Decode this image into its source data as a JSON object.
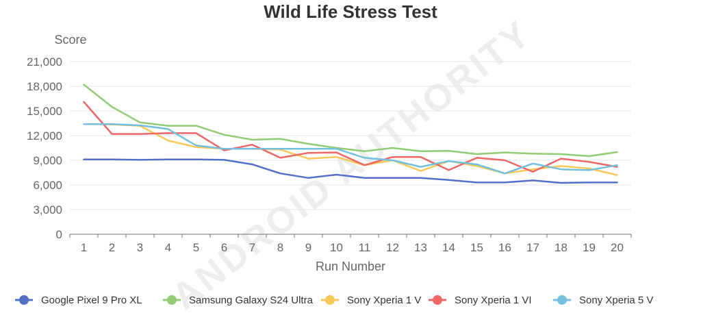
{
  "chart_data": {
    "type": "line",
    "title": "Wild Life Stress Test",
    "xlabel": "Run Number",
    "ylabel": "Score",
    "categories": [
      "1",
      "2",
      "3",
      "4",
      "5",
      "6",
      "7",
      "8",
      "9",
      "10",
      "11",
      "12",
      "13",
      "14",
      "15",
      "16",
      "17",
      "18",
      "19",
      "20"
    ],
    "ylim": [
      0,
      21000
    ],
    "yticks": [
      "0",
      "3,000",
      "6,000",
      "9,000",
      "12,000",
      "15,000",
      "18,000",
      "21,000"
    ],
    "grid": true,
    "legend_position": "bottom",
    "watermark": "ANDROID AUTHORITY",
    "series": [
      {
        "name": "Google Pixel 9 Pro XL",
        "color": "#5470c6",
        "values": [
          9100,
          9100,
          9050,
          9100,
          9100,
          9050,
          8500,
          7400,
          6850,
          7250,
          6850,
          6850,
          6850,
          6600,
          6300,
          6300,
          6550,
          6250,
          6300,
          6300
        ]
      },
      {
        "name": "Samsung Galaxy S24 Ultra",
        "color": "#91cc75",
        "values": [
          18200,
          15500,
          13600,
          13200,
          13200,
          12100,
          11500,
          11600,
          11000,
          10500,
          10100,
          10500,
          10100,
          10150,
          9750,
          9950,
          9800,
          9750,
          9500,
          10000
        ]
      },
      {
        "name": "Sony Xperia 1 V",
        "color": "#fac858",
        "values": [
          13400,
          13350,
          13200,
          11400,
          10600,
          10400,
          10400,
          10300,
          9200,
          9400,
          8400,
          9000,
          7700,
          8900,
          8300,
          7400,
          7900,
          8300,
          8000,
          7200
        ]
      },
      {
        "name": "Sony Xperia 1 VI",
        "color": "#ee6666",
        "values": [
          16100,
          12200,
          12200,
          12300,
          12300,
          10200,
          10900,
          9300,
          9900,
          9950,
          8400,
          9400,
          9400,
          7800,
          9300,
          9000,
          7600,
          9200,
          8800,
          8200
        ]
      },
      {
        "name": "Sony Xperia 5 V",
        "color": "#73c0de",
        "values": [
          13400,
          13400,
          13250,
          12800,
          10800,
          10400,
          10400,
          10400,
          10400,
          10400,
          9300,
          9000,
          8200,
          8900,
          8500,
          7400,
          8600,
          7900,
          7800,
          8400
        ]
      }
    ]
  }
}
